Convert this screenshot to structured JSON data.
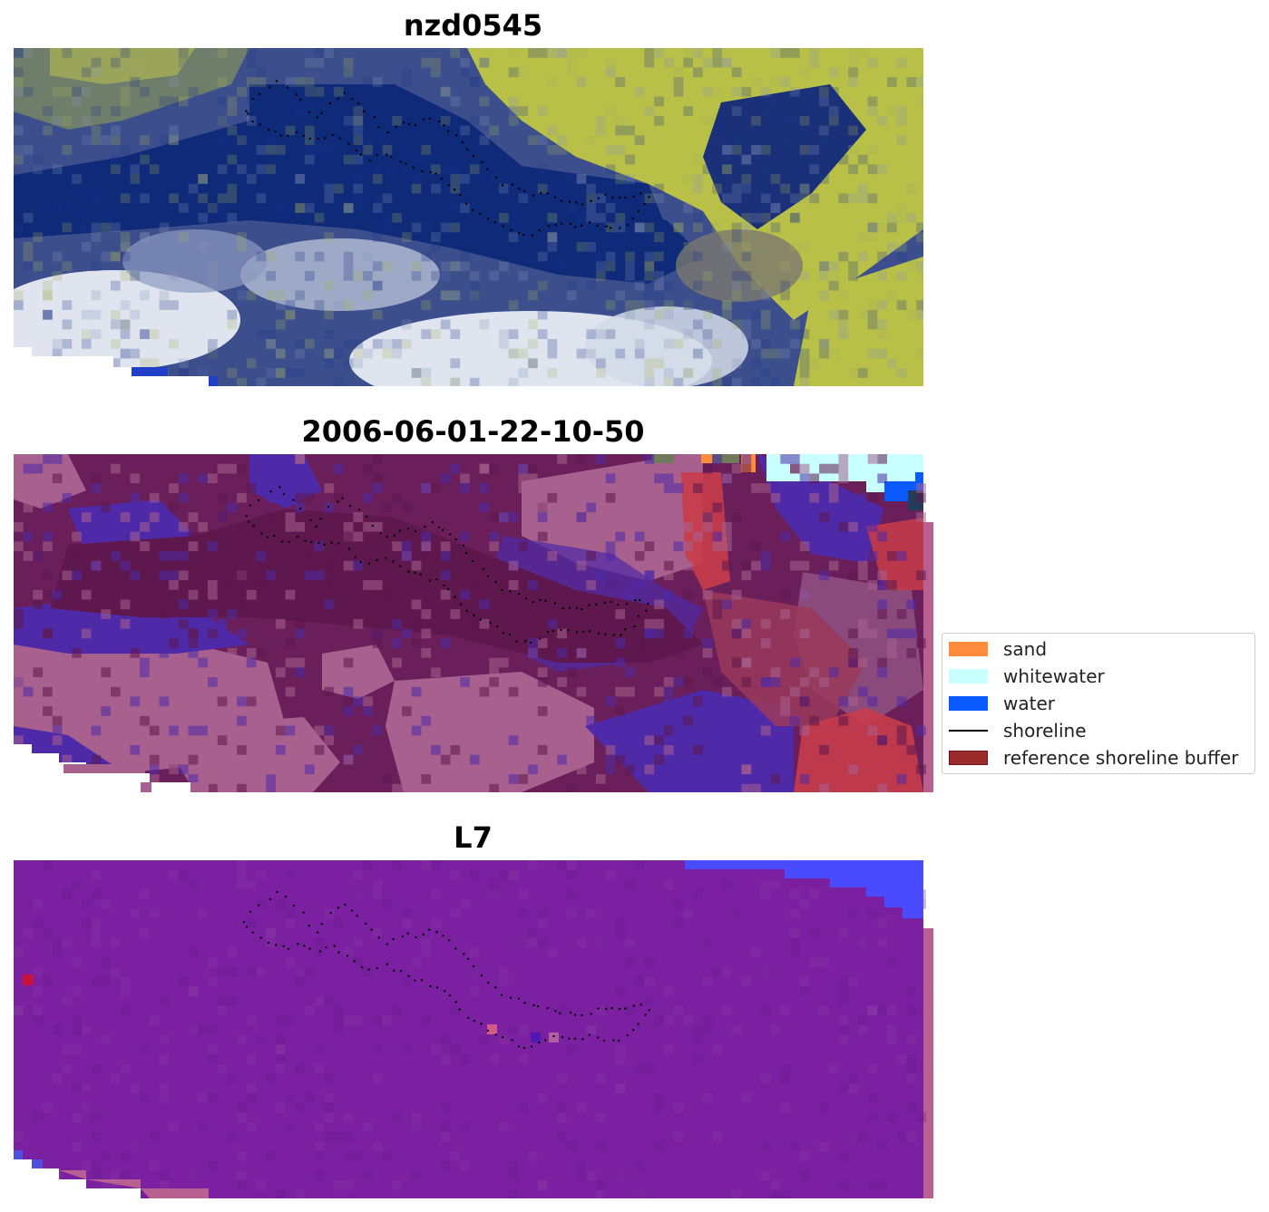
{
  "panels": [
    {
      "title": "nzd0545",
      "kind": "rgb-satellite-image"
    },
    {
      "title": "2006-06-01-22-10-50",
      "kind": "classified-image"
    },
    {
      "title": "L7",
      "kind": "mndwi-image"
    }
  ],
  "legend": {
    "placement": "right, beside middle panel",
    "items": [
      {
        "label": "sand",
        "color": "#ff8c3c",
        "symbol": "patch"
      },
      {
        "label": "whitewater",
        "color": "#c8ffff",
        "symbol": "patch"
      },
      {
        "label": "water",
        "color": "#0a5aff",
        "symbol": "patch"
      },
      {
        "label": "shoreline",
        "color": "#000000",
        "symbol": "line"
      },
      {
        "label": "reference shoreline buffer",
        "color": "#9b2a2a",
        "edge_color": "#6e1414",
        "symbol": "patch"
      }
    ]
  },
  "colors": {
    "rgb_dark_water": "#0e2a78",
    "rgb_vegetation": "#b8c048",
    "rgb_cloud": "#e8ecf4",
    "class_background": "#6a1f5a",
    "class_light": "#a8608e",
    "class_mid": "#4f2aa8",
    "class_buffer_red": "#c83c4a",
    "mndwi_base": "#7a20a0",
    "mndwi_water": "#4a4aff",
    "mndwi_edge": "#b86090"
  }
}
